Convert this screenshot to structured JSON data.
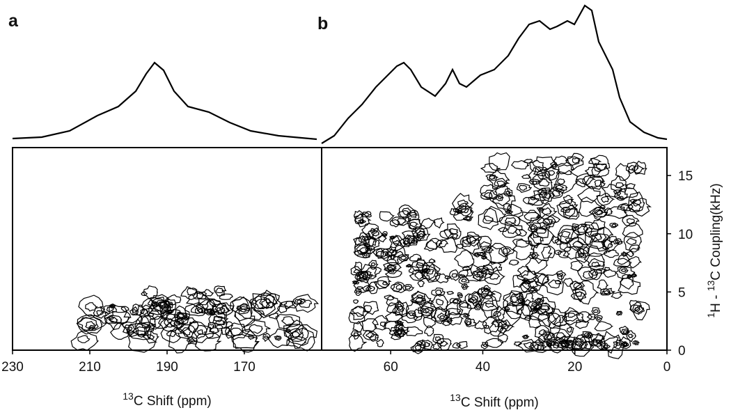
{
  "panels": [
    {
      "label": "a",
      "xlim": [
        230,
        150
      ],
      "xticks": [
        230,
        210,
        190,
        170
      ],
      "xlabel": {
        "sup": "13",
        "text": "C Shift (ppm)"
      }
    },
    {
      "label": "b",
      "xlim": [
        75,
        0
      ],
      "xticks": [
        60,
        40,
        20,
        0
      ],
      "xlabel": {
        "sup": "13",
        "text": "C Shift (ppm)"
      }
    }
  ],
  "yaxis": {
    "ylim": [
      0,
      17.4
    ],
    "yticks": [
      0,
      5,
      10,
      15
    ],
    "label": {
      "sup1": "1",
      "text1": "H - ",
      "sup2": "13",
      "text2": "C Coupling(kHz)"
    }
  }
}
